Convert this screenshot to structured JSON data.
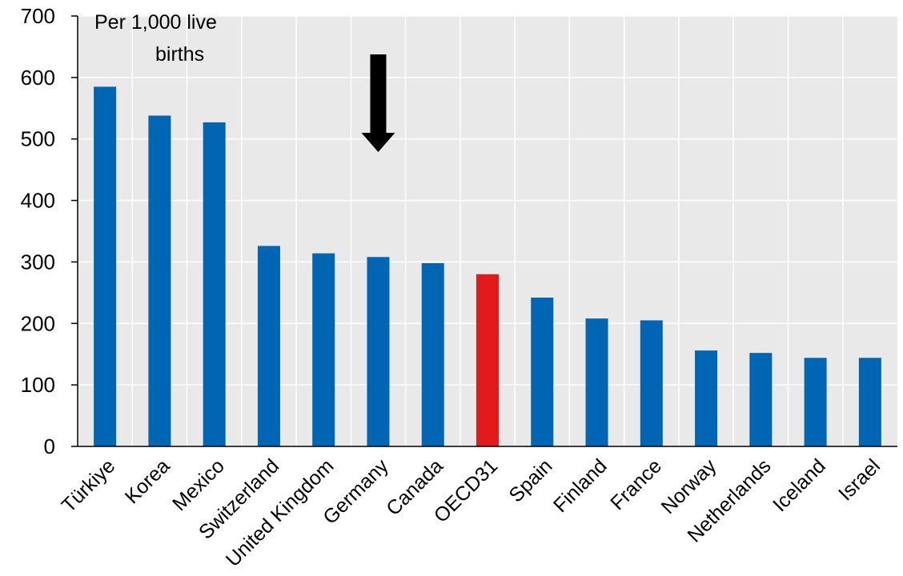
{
  "chart_data": {
    "type": "bar",
    "unit_label_line1": "Per 1,000 live",
    "unit_label_line2": "births",
    "categories": [
      "Türkiye",
      "Korea",
      "Mexico",
      "Switzerland",
      "United Kingdom",
      "Germany",
      "Canada",
      "OECD31",
      "Spain",
      "Finland",
      "France",
      "Norway",
      "Netherlands",
      "Iceland",
      "Israel"
    ],
    "values": [
      585,
      538,
      527,
      326,
      314,
      308,
      298,
      280,
      242,
      208,
      205,
      156,
      152,
      144,
      144
    ],
    "highlight_category": "OECD31",
    "highlight_color": "#e31a1c",
    "bar_color": "#0066b3",
    "plot_background": "#e9e9e9",
    "arrow_marker_category": "Germany",
    "ylim": [
      0,
      700
    ],
    "yticks": [
      0,
      100,
      200,
      300,
      400,
      500,
      600,
      700
    ],
    "grid": true,
    "legend": false
  }
}
